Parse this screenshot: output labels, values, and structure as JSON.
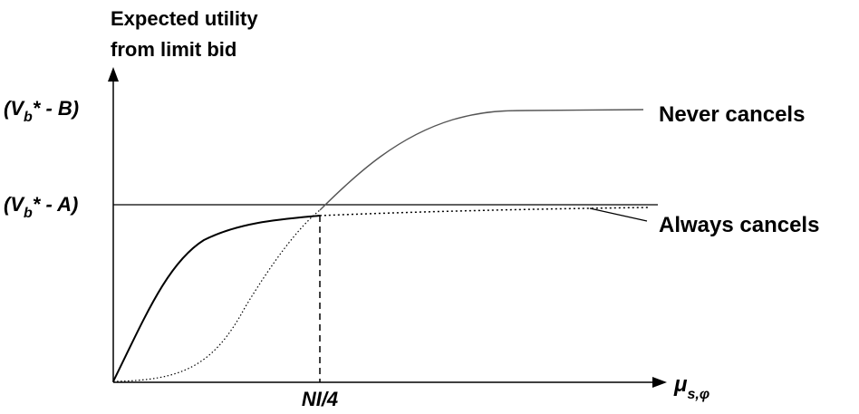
{
  "diagram": {
    "y_axis_label_line1": "Expected utility",
    "y_axis_label_line2": "from limit bid",
    "y_tick_upper": {
      "pre": "(V",
      "sub": "b",
      "post": "* - B)"
    },
    "y_tick_lower": {
      "pre": "(V",
      "sub": "b",
      "post": "* - A)"
    },
    "x_tick": "NI/4",
    "x_axis_label": {
      "main": "μ",
      "sub": "s,φ"
    },
    "series_never_cancels": "Never cancels",
    "series_always_cancels": "Always cancels",
    "colors": {
      "ink": "#000000",
      "background": "#ffffff"
    }
  }
}
